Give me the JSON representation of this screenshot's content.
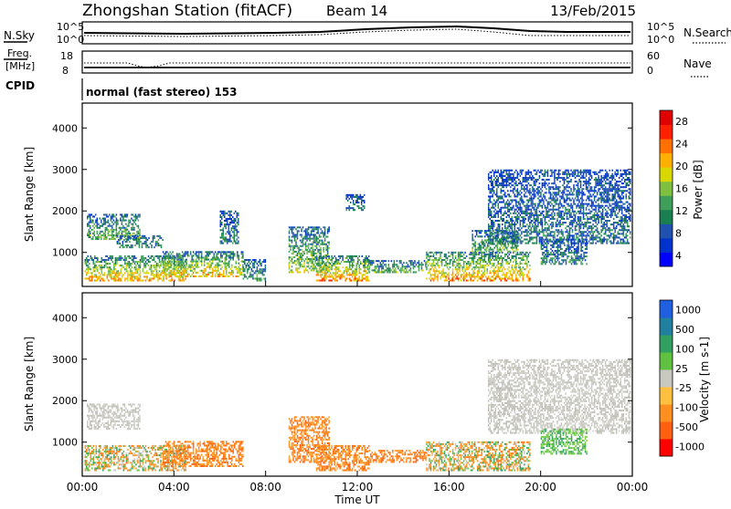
{
  "header": {
    "station": "Zhongshan Station (fitACF)",
    "beam": "Beam 14",
    "date": "13/Feb/2015"
  },
  "noise_panel": {
    "left_label": "N.Sky",
    "right_label": "N.Search",
    "left_ticks": [
      "10^5",
      "10^0"
    ],
    "right_ticks": [
      "10^5",
      "10^0"
    ]
  },
  "freq_panel": {
    "left_label_1": "Freq.",
    "left_label_2": "[MHz]",
    "right_label": "Nave",
    "left_ticks": [
      "18",
      "8"
    ],
    "right_ticks": [
      "60",
      "0"
    ]
  },
  "cpid_panel": {
    "label": "CPID",
    "mode_text": "normal (fast stereo) 153"
  },
  "chart_data": [
    {
      "type": "heatmap",
      "title": "",
      "xlabel": "Time UT",
      "ylabel": "Slant Range [km]",
      "xlim": [
        0,
        24
      ],
      "ylim": [
        180,
        4600
      ],
      "x_ticks": [
        "00:00",
        "04:00",
        "08:00",
        "12:00",
        "16:00",
        "20:00",
        "00:00"
      ],
      "y_ticks": [
        "1000",
        "2000",
        "3000",
        "4000"
      ],
      "colorbar": {
        "label": "Power [dB]",
        "tick_labels": [
          "28",
          "24",
          "20",
          "16",
          "12",
          "8",
          "4"
        ],
        "colors": [
          "#0000ff",
          "#0033cc",
          "#2050b0",
          "#1a7f50",
          "#3f9f5a",
          "#7fc040",
          "#d8d800",
          "#ffb000",
          "#ff7000",
          "#ff2000",
          "#e00000"
        ]
      },
      "echo_regions": [
        {
          "t": [
            0.1,
            4.5
          ],
          "r": [
            300,
            900
          ],
          "level": 0.75
        },
        {
          "t": [
            0.2,
            2.5
          ],
          "r": [
            1300,
            1900
          ],
          "level": 0.45
        },
        {
          "t": [
            1.5,
            3.5
          ],
          "r": [
            1100,
            1400
          ],
          "level": 0.35
        },
        {
          "t": [
            3.5,
            7.0
          ],
          "r": [
            400,
            1000
          ],
          "level": 0.7
        },
        {
          "t": [
            6.0,
            6.8
          ],
          "r": [
            1200,
            2000
          ],
          "level": 0.3
        },
        {
          "t": [
            7.0,
            8.0
          ],
          "r": [
            300,
            800
          ],
          "level": 0.4
        },
        {
          "t": [
            9.0,
            10.8
          ],
          "r": [
            500,
            1600
          ],
          "level": 0.55
        },
        {
          "t": [
            10.2,
            12.5
          ],
          "r": [
            300,
            900
          ],
          "level": 0.8
        },
        {
          "t": [
            11.5,
            12.3
          ],
          "r": [
            2000,
            2400
          ],
          "level": 0.3
        },
        {
          "t": [
            12.5,
            15.0
          ],
          "r": [
            500,
            800
          ],
          "level": 0.45
        },
        {
          "t": [
            15.0,
            19.5
          ],
          "r": [
            300,
            1000
          ],
          "level": 0.8
        },
        {
          "t": [
            17.0,
            19.0
          ],
          "r": [
            1000,
            1500
          ],
          "level": 0.45
        },
        {
          "t": [
            17.7,
            23.9
          ],
          "r": [
            1200,
            3000
          ],
          "level": 0.25
        },
        {
          "t": [
            20.0,
            22.0
          ],
          "r": [
            700,
            1300
          ],
          "level": 0.3
        }
      ]
    },
    {
      "type": "heatmap",
      "title": "",
      "xlabel": "Time UT",
      "ylabel": "Slant Range [km]",
      "xlim": [
        0,
        24
      ],
      "ylim": [
        180,
        4600
      ],
      "x_ticks": [
        "00:00",
        "04:00",
        "08:00",
        "12:00",
        "16:00",
        "20:00",
        "00:00"
      ],
      "y_ticks": [
        "1000",
        "2000",
        "3000",
        "4000"
      ],
      "colorbar": {
        "label": "Velocity [m s-1]",
        "tick_labels": [
          "1000",
          "500",
          "100",
          "25",
          "-25",
          "-100",
          "-500",
          "-1000"
        ],
        "colors": [
          "#2060e0",
          "#2080a0",
          "#30a060",
          "#60c040",
          "#c8c8c0",
          "#ffc040",
          "#ff9020",
          "#ff6010",
          "#ff0000"
        ]
      },
      "echo_regions": [
        {
          "t": [
            0.1,
            4.5
          ],
          "r": [
            300,
            900
          ],
          "kind": "mixed_green_orange"
        },
        {
          "t": [
            0.2,
            2.5
          ],
          "r": [
            1300,
            1900
          ],
          "kind": "gray"
        },
        {
          "t": [
            3.5,
            7.0
          ],
          "r": [
            400,
            1000
          ],
          "kind": "orange"
        },
        {
          "t": [
            9.0,
            10.8
          ],
          "r": [
            500,
            1600
          ],
          "kind": "orange"
        },
        {
          "t": [
            10.2,
            12.5
          ],
          "r": [
            300,
            900
          ],
          "kind": "orange"
        },
        {
          "t": [
            12.5,
            15.0
          ],
          "r": [
            500,
            800
          ],
          "kind": "orange"
        },
        {
          "t": [
            15.0,
            19.5
          ],
          "r": [
            300,
            1000
          ],
          "kind": "mixed_green_orange"
        },
        {
          "t": [
            17.7,
            23.9
          ],
          "r": [
            1200,
            3000
          ],
          "kind": "gray"
        },
        {
          "t": [
            20.0,
            22.0
          ],
          "r": [
            700,
            1300
          ],
          "kind": "green"
        }
      ]
    }
  ]
}
